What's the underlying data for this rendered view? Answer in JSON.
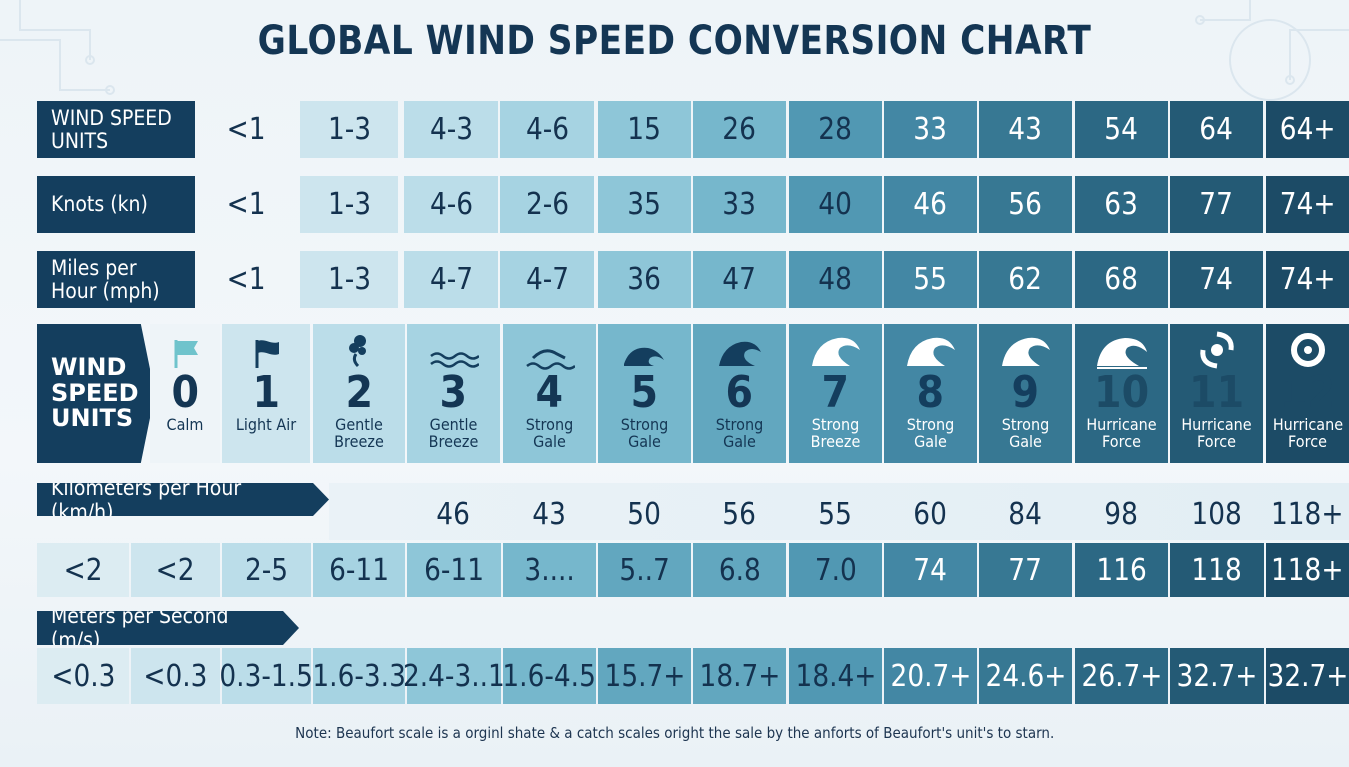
{
  "title": "GLOBAL WIND SPEED CONVERSION CHART",
  "rows": {
    "units": {
      "label": "WIND SPEED UNITS",
      "cells": [
        "<1",
        "1-3",
        "4-3",
        "4-6",
        "15",
        "26",
        "28",
        "33",
        "43",
        "54",
        "64",
        "64+"
      ]
    },
    "knots": {
      "label": "Knots (kn)",
      "cells": [
        "<1",
        "1-3",
        "4-6",
        "2-6",
        "35",
        "33",
        "40",
        "46",
        "56",
        "63",
        "77",
        "74+"
      ]
    },
    "mph": {
      "label": "Miles per Hour (mph)",
      "cells": [
        "<1",
        "1-3",
        "4-7",
        "4-7",
        "36",
        "47",
        "48",
        "55",
        "62",
        "68",
        "74",
        "74+"
      ]
    }
  },
  "beaufort": {
    "label": "WIND SPEED UNITS",
    "levels": [
      {
        "num": "0",
        "desc": "Calm",
        "icon": "flag-light-icon"
      },
      {
        "num": "1",
        "desc": "Light Air",
        "icon": "flag-icon"
      },
      {
        "num": "2",
        "desc": "Gentle Breeze",
        "icon": "smoke-icon"
      },
      {
        "num": "3",
        "desc": "Gentle Breeze",
        "icon": "ripple-icon"
      },
      {
        "num": "4",
        "desc": "Strong Gale",
        "icon": "small-wave-icon"
      },
      {
        "num": "5",
        "desc": "Strong Gale",
        "icon": "wave-icon"
      },
      {
        "num": "6",
        "desc": "Strong Gale",
        "icon": "big-wave-icon"
      },
      {
        "num": "7",
        "desc": "Strong Breeze",
        "icon": "curl-wave-icon"
      },
      {
        "num": "8",
        "desc": "Strong Gale",
        "icon": "curl-wave-icon"
      },
      {
        "num": "9",
        "desc": "Strong Gale",
        "icon": "curl-wave-icon"
      },
      {
        "num": "10",
        "desc": "Hurricane Force",
        "icon": "tsunami-icon"
      },
      {
        "num": "11",
        "desc": "Hurricane Force",
        "icon": "hurricane-icon"
      },
      {
        "num": "12",
        "desc": "Hurricane Force",
        "icon": "hurricane-eye-icon"
      }
    ]
  },
  "kmh": {
    "label": "Kilometers per Hour (km/h)",
    "row1": [
      "46",
      "43",
      "50",
      "56",
      "55",
      "60",
      "84",
      "98",
      "108",
      "118+"
    ],
    "row2": [
      "<2",
      "<2",
      "2-5",
      "6-11",
      "6-11",
      "3....",
      "5..7",
      "6.8",
      "7.0",
      "74",
      "77",
      "116",
      "118",
      "118+"
    ]
  },
  "ms": {
    "label": "Meters per Second (m/s)",
    "cells": [
      "<0.3",
      "<0.3",
      "0.3-1.5",
      "1.6-3.3",
      "2.4-3..1",
      "1.6-4.5",
      "15.7+",
      "18.7+",
      "18.4+",
      "20.7+",
      "24.6+",
      "26.7+",
      "32.7+",
      "32.7+"
    ]
  },
  "note": "Note: Beaufort scale is a orginl shate & a catch scales oright the sale by the anforts of Beaufort's unit's to starn.",
  "colors": {
    "navy": "#143e5e",
    "scale": [
      "#dcecf2",
      "#cde5ee",
      "#bbdde9",
      "#a6d3e2",
      "#8ec6d8",
      "#76b7cc",
      "#62a7bf",
      "#5198b3",
      "#4387a4",
      "#377893",
      "#2c6884",
      "#245a75",
      "#1c4b66"
    ]
  }
}
